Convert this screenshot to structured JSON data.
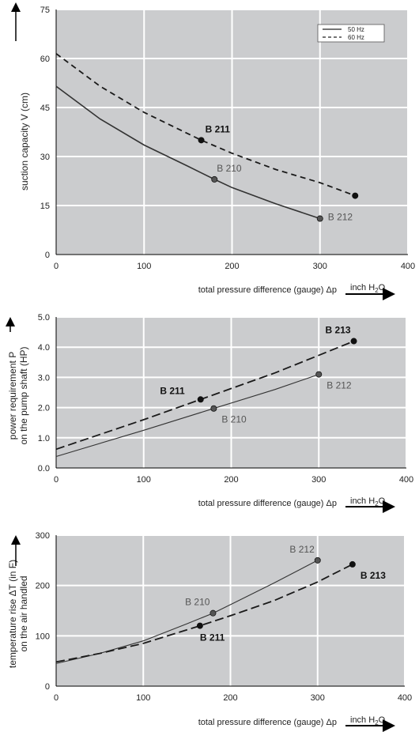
{
  "chart_data": [
    {
      "type": "line",
      "ylabel": "suction capacity V (cm)",
      "xlabel": "total pressure difference (gauge)  Δp",
      "unit_text": "inch H",
      "unit_sub": "2",
      "unit_tail": "O",
      "xlim": [
        0,
        400
      ],
      "ylim": [
        0,
        75
      ],
      "xticks": [
        "0",
        "100",
        "200",
        "300",
        "400"
      ],
      "yticks": [
        "0",
        "15",
        "30",
        "45",
        "60",
        "75"
      ],
      "grid": true,
      "legend": {
        "placement": "top-right",
        "entries": [
          "50 Hz",
          "60 Hz"
        ]
      },
      "series": [
        {
          "name": "50 Hz",
          "style": "solid",
          "x": [
            0,
            50,
            100,
            150,
            180,
            200,
            250,
            300
          ],
          "y": [
            51.5,
            41.5,
            33.5,
            27,
            23,
            20.5,
            15.5,
            11
          ]
        },
        {
          "name": "60 Hz",
          "style": "dashed",
          "x": [
            0,
            50,
            100,
            165,
            200,
            250,
            300,
            340
          ],
          "y": [
            61.5,
            51.5,
            43.5,
            35,
            31,
            26,
            22,
            18
          ]
        }
      ],
      "points": [
        {
          "label": "B 211",
          "x": 165,
          "y": 35,
          "bold": true,
          "anchor": "above"
        },
        {
          "label": "B 210",
          "x": 180,
          "y": 23,
          "bold": false,
          "anchor": "above-right"
        },
        {
          "label": "B 212",
          "x": 300,
          "y": 11,
          "bold": false,
          "anchor": "right"
        },
        {
          "label": "",
          "x": 340,
          "y": 18,
          "bold": true,
          "anchor": "none"
        }
      ]
    },
    {
      "type": "line",
      "ylabel_line1": "power requirement P",
      "ylabel_line2": "on the pump shaft (HP)",
      "xlabel": "total pressure difference (gauge)  Δp",
      "unit_text": "inch H",
      "unit_sub": "2",
      "unit_tail": "O",
      "xlim": [
        0,
        400
      ],
      "ylim": [
        0,
        5
      ],
      "xticks": [
        "0",
        "100",
        "200",
        "300",
        "400"
      ],
      "yticks": [
        "0.0",
        "1.0",
        "2.0",
        "3.0",
        "4.0",
        "5.0"
      ],
      "grid": true,
      "series": [
        {
          "style": "solid",
          "x": [
            0,
            100,
            180,
            250,
            300
          ],
          "y": [
            0.38,
            1.25,
            1.97,
            2.6,
            3.1
          ]
        },
        {
          "style": "dashed",
          "x": [
            0,
            100,
            165,
            250,
            340
          ],
          "y": [
            0.62,
            1.6,
            2.27,
            3.15,
            4.2
          ]
        }
      ],
      "points": [
        {
          "label": "B 211",
          "x": 165,
          "y": 2.27,
          "bold": true,
          "anchor": "left-above"
        },
        {
          "label": "B 210",
          "x": 180,
          "y": 1.97,
          "bold": false,
          "anchor": "below-right"
        },
        {
          "label": "B 212",
          "x": 300,
          "y": 3.1,
          "bold": false,
          "anchor": "below-right"
        },
        {
          "label": "B 213",
          "x": 340,
          "y": 4.2,
          "bold": true,
          "anchor": "above-left"
        }
      ]
    },
    {
      "type": "line",
      "ylabel_line1": "temperature rise ΔT  (in F)",
      "ylabel_line2": "on the air handled",
      "xlabel": "total pressure difference (gauge)  Δp",
      "unit_text": "inch H",
      "unit_sub": "2",
      "unit_tail": "O",
      "xlim": [
        0,
        400
      ],
      "ylim": [
        0,
        300
      ],
      "xticks": [
        "0",
        "100",
        "200",
        "300",
        "400"
      ],
      "yticks": [
        "0",
        "100",
        "200",
        "300"
      ],
      "grid": true,
      "series": [
        {
          "style": "solid",
          "x": [
            0,
            50,
            100,
            150,
            180,
            200,
            250,
            300
          ],
          "y": [
            45,
            65,
            90,
            124,
            145,
            162,
            205,
            250
          ]
        },
        {
          "style": "dashed",
          "x": [
            0,
            50,
            100,
            165,
            200,
            250,
            300,
            340
          ],
          "y": [
            48,
            65,
            85,
            120,
            140,
            170,
            207,
            242
          ]
        }
      ],
      "points": [
        {
          "label": "B 212",
          "x": 300,
          "y": 250,
          "bold": false,
          "anchor": "above-left"
        },
        {
          "label": "B 210",
          "x": 180,
          "y": 145,
          "bold": false,
          "anchor": "above-left"
        },
        {
          "label": "B 211",
          "x": 165,
          "y": 120,
          "bold": true,
          "anchor": "below"
        },
        {
          "label": "B 213",
          "x": 340,
          "y": 242,
          "bold": true,
          "anchor": "below-right"
        }
      ]
    }
  ]
}
